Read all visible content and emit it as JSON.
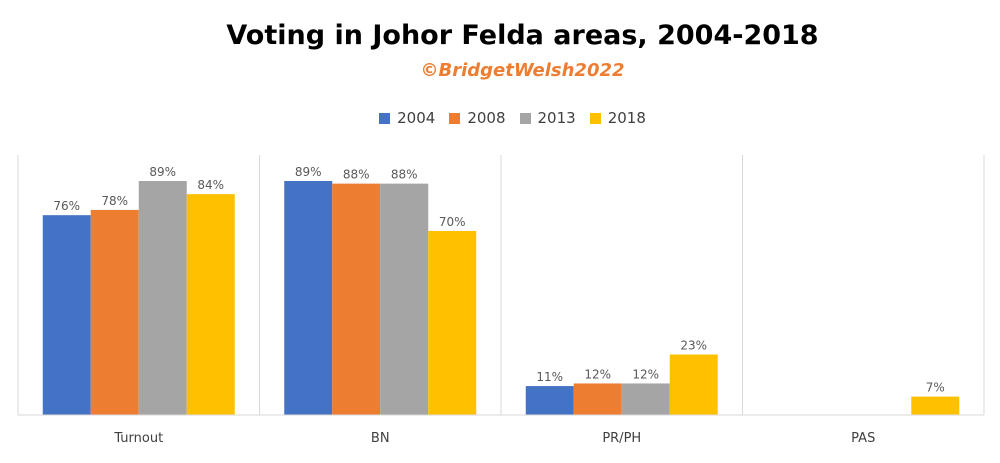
{
  "chart_data": {
    "type": "bar",
    "title": "Voting in Johor Felda areas, 2004-2018",
    "subtitle": "©BridgetWelsh2022",
    "categories": [
      "Turnout",
      "BN",
      "PR/PH",
      "PAS"
    ],
    "series": [
      {
        "name": "2004",
        "color": "#4472C4",
        "values": [
          76,
          89,
          11,
          null
        ],
        "labels": [
          "76%",
          "89%",
          "11%",
          ""
        ]
      },
      {
        "name": "2008",
        "color": "#ED7D31",
        "values": [
          78,
          88,
          12,
          null
        ],
        "labels": [
          "78%",
          "88%",
          "12%",
          ""
        ]
      },
      {
        "name": "2013",
        "color": "#A5A5A5",
        "values": [
          89,
          88,
          12,
          null
        ],
        "labels": [
          "89%",
          "88%",
          "12%",
          ""
        ]
      },
      {
        "name": "2018",
        "color": "#FFC000",
        "values": [
          84,
          70,
          23,
          7
        ],
        "labels": [
          "84%",
          "70%",
          "23%",
          "7%"
        ]
      }
    ],
    "ylim": [
      0,
      100
    ],
    "legend_position": "top",
    "grid": false
  }
}
